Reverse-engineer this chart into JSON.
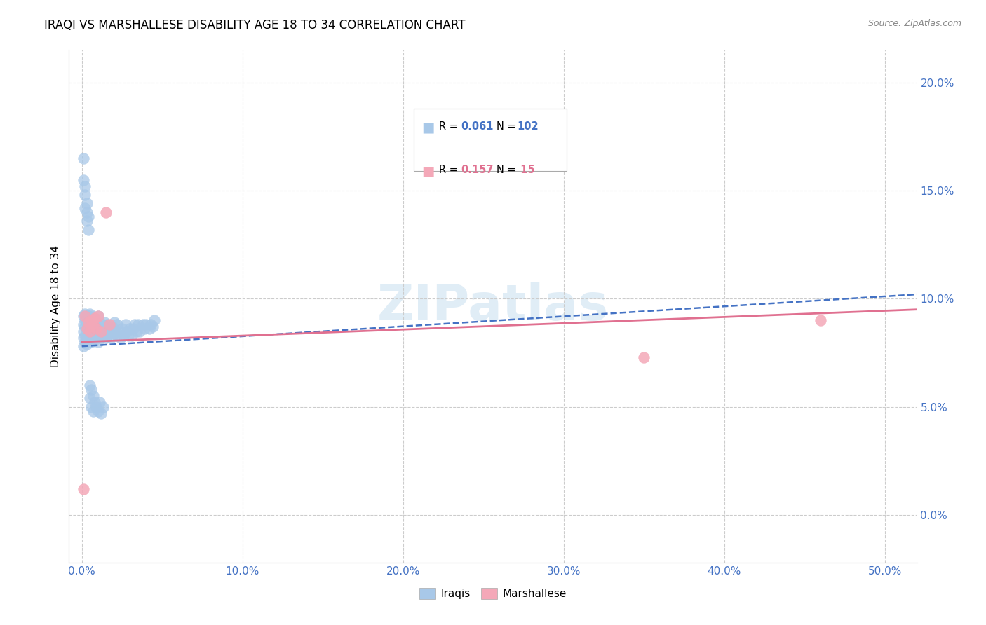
{
  "title": "IRAQI VS MARSHALLESE DISABILITY AGE 18 TO 34 CORRELATION CHART",
  "source": "Source: ZipAtlas.com",
  "xlim": [
    -0.008,
    0.52
  ],
  "ylim": [
    -0.022,
    0.215
  ],
  "ylabel": "Disability Age 18 to 34",
  "iraqis_color": "#a8c8e8",
  "marshallese_color": "#f4a8b8",
  "iraqis_line_color": "#4472c4",
  "marshallese_line_color": "#e07090",
  "watermark": "ZIPatlas",
  "title_fontsize": 12,
  "axis_label_fontsize": 11,
  "tick_fontsize": 11,
  "source_fontsize": 9,
  "Iraqi_R": "0.061",
  "Iraqi_N": "102",
  "Marsh_R": "0.157",
  "Marsh_N": " 15",
  "iraqis_x": [
    0.001,
    0.001,
    0.001,
    0.001,
    0.001,
    0.002,
    0.002,
    0.002,
    0.002,
    0.002,
    0.003,
    0.003,
    0.003,
    0.003,
    0.003,
    0.004,
    0.004,
    0.004,
    0.004,
    0.005,
    0.005,
    0.005,
    0.005,
    0.006,
    0.006,
    0.006,
    0.006,
    0.007,
    0.007,
    0.007,
    0.008,
    0.008,
    0.008,
    0.009,
    0.009,
    0.01,
    0.01,
    0.01,
    0.01,
    0.011,
    0.011,
    0.012,
    0.012,
    0.013,
    0.013,
    0.014,
    0.014,
    0.015,
    0.015,
    0.016,
    0.016,
    0.017,
    0.018,
    0.019,
    0.02,
    0.02,
    0.021,
    0.022,
    0.022,
    0.023,
    0.024,
    0.025,
    0.026,
    0.027,
    0.028,
    0.029,
    0.03,
    0.031,
    0.032,
    0.033,
    0.034,
    0.035,
    0.036,
    0.038,
    0.039,
    0.04,
    0.042,
    0.043,
    0.044,
    0.045,
    0.001,
    0.001,
    0.002,
    0.002,
    0.002,
    0.003,
    0.003,
    0.003,
    0.004,
    0.004,
    0.005,
    0.005,
    0.006,
    0.006,
    0.007,
    0.007,
    0.008,
    0.009,
    0.01,
    0.011,
    0.012,
    0.013
  ],
  "iraqis_y": [
    0.078,
    0.082,
    0.085,
    0.088,
    0.092,
    0.08,
    0.083,
    0.087,
    0.09,
    0.093,
    0.079,
    0.082,
    0.086,
    0.089,
    0.092,
    0.08,
    0.084,
    0.088,
    0.092,
    0.081,
    0.085,
    0.089,
    0.093,
    0.08,
    0.084,
    0.088,
    0.092,
    0.082,
    0.086,
    0.09,
    0.081,
    0.085,
    0.089,
    0.083,
    0.088,
    0.08,
    0.084,
    0.088,
    0.092,
    0.083,
    0.087,
    0.082,
    0.087,
    0.083,
    0.088,
    0.084,
    0.089,
    0.082,
    0.087,
    0.083,
    0.088,
    0.085,
    0.082,
    0.087,
    0.084,
    0.089,
    0.085,
    0.083,
    0.088,
    0.085,
    0.082,
    0.086,
    0.083,
    0.088,
    0.085,
    0.083,
    0.086,
    0.083,
    0.086,
    0.088,
    0.085,
    0.088,
    0.085,
    0.088,
    0.086,
    0.088,
    0.086,
    0.088,
    0.087,
    0.09,
    0.155,
    0.165,
    0.142,
    0.148,
    0.152,
    0.136,
    0.14,
    0.144,
    0.132,
    0.138,
    0.06,
    0.054,
    0.058,
    0.05,
    0.055,
    0.048,
    0.052,
    0.05,
    0.048,
    0.052,
    0.047,
    0.05
  ],
  "marshallese_x": [
    0.001,
    0.002,
    0.003,
    0.004,
    0.005,
    0.006,
    0.007,
    0.008,
    0.009,
    0.01,
    0.012,
    0.015,
    0.017,
    0.35,
    0.46
  ],
  "marshallese_y": [
    0.012,
    0.092,
    0.086,
    0.089,
    0.085,
    0.09,
    0.088,
    0.091,
    0.086,
    0.092,
    0.085,
    0.14,
    0.088,
    0.073,
    0.09
  ],
  "iraqi_line_x0": 0.0,
  "iraqi_line_x1": 0.52,
  "iraqi_line_y0": 0.078,
  "iraqi_line_y1": 0.102,
  "marsh_line_x0": 0.0,
  "marsh_line_x1": 0.52,
  "marsh_line_y0": 0.08,
  "marsh_line_y1": 0.095
}
